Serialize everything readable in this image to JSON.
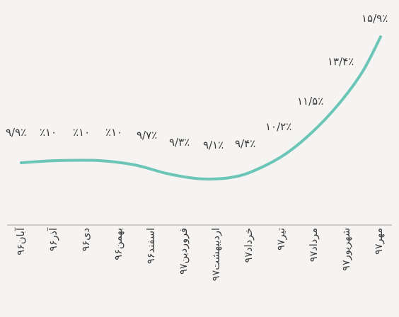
{
  "chart_data": {
    "type": "line",
    "categories": [
      "آبان۹۶",
      "آذر۹۶",
      "دی۹۶",
      "بهمن۹۶",
      "اسفند۹۶",
      "فروردین۹۷",
      "اردیبهشت۹۷",
      "خرداد۹۷",
      "تیر۹۷",
      "مرداد۹۷",
      "شهریور۹۷",
      "مهر۹۷"
    ],
    "values": [
      9.9,
      10.0,
      10.0,
      10.0,
      9.7,
      9.3,
      9.1,
      9.4,
      10.2,
      11.5,
      13.4,
      15.9
    ],
    "data_labels": [
      "۹/۹٪",
      "٪۱۰",
      "٪۱۰",
      "٪۱۰",
      "۹/۷٪",
      "۹/۳٪",
      "۹/۱٪",
      "۹/۴٪",
      "۱۰/۲٪",
      "۱۱/۵٪",
      "۱۳/۴٪",
      "۱۵/۹٪"
    ],
    "title": "",
    "xlabel": "",
    "ylabel": "",
    "grid": false,
    "legend": false,
    "line_color": "#6cc6b8",
    "axis_color": "#bdbdbd",
    "text_color": "#3a3a3a"
  }
}
